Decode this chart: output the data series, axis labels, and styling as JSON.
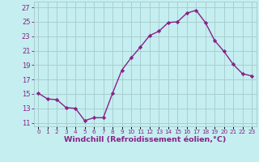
{
  "x": [
    0,
    1,
    2,
    3,
    4,
    5,
    6,
    7,
    8,
    9,
    10,
    11,
    12,
    13,
    14,
    15,
    16,
    17,
    18,
    19,
    20,
    21,
    22,
    23
  ],
  "y": [
    15.1,
    14.3,
    14.2,
    13.1,
    13.0,
    11.3,
    11.7,
    11.7,
    15.1,
    18.3,
    20.0,
    21.5,
    23.1,
    23.7,
    24.9,
    25.0,
    26.2,
    26.6,
    24.9,
    22.4,
    20.9,
    19.1,
    17.8,
    17.5
  ],
  "line_color": "#882288",
  "marker": "D",
  "markersize": 2.2,
  "linewidth": 1.0,
  "bg_color": "#C5EEF0",
  "grid_color": "#AACDD0",
  "xlabel": "Windchill (Refroidissement éolien,°C)",
  "xlabel_fontsize": 6.8,
  "ylabel_ticks": [
    11,
    13,
    15,
    17,
    19,
    21,
    23,
    25,
    27
  ],
  "xlim": [
    -0.5,
    23.5
  ],
  "ylim": [
    10.5,
    27.8
  ],
  "tick_color": "#882288",
  "ytick_fontsize": 6.0,
  "xtick_fontsize": 5.2
}
